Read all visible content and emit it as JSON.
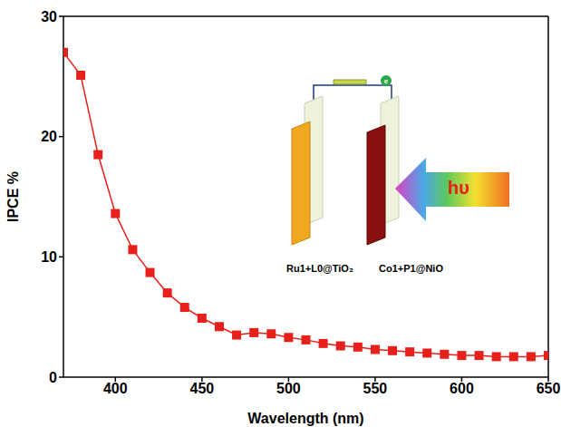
{
  "chart_data": {
    "type": "line",
    "x_label": "Wavelength (nm)",
    "y_label": "IPCE %",
    "x": [
      370,
      380,
      390,
      400,
      410,
      420,
      430,
      440,
      450,
      460,
      470,
      480,
      490,
      500,
      510,
      520,
      530,
      540,
      550,
      560,
      570,
      580,
      590,
      600,
      610,
      620,
      630,
      640,
      650
    ],
    "values": [
      27,
      25.1,
      18.5,
      13.6,
      10.6,
      8.7,
      7.0,
      5.8,
      4.9,
      4.2,
      3.5,
      3.7,
      3.6,
      3.3,
      3.1,
      2.8,
      2.6,
      2.5,
      2.3,
      2.2,
      2.1,
      2.0,
      1.9,
      1.8,
      1.8,
      1.7,
      1.7,
      1.7,
      1.8
    ],
    "color": "#e8201c",
    "marker": "square",
    "line_style": "solid",
    "xlim": [
      370,
      650
    ],
    "xticks": [
      400,
      450,
      500,
      550,
      600,
      650
    ],
    "ylim": [
      0,
      30
    ],
    "yticks": [
      0,
      10,
      20,
      30
    ],
    "grid": false,
    "annotations": [
      "Ru1+L0@TiO₂",
      "Co1+P1@NiO",
      "hυ",
      "e"
    ]
  }
}
